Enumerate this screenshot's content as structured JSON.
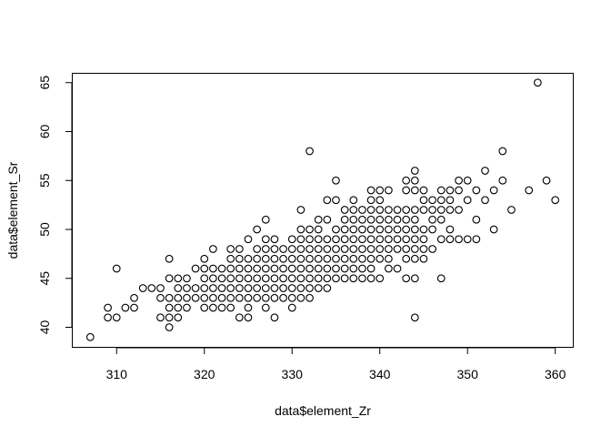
{
  "chart_data": {
    "type": "scatter",
    "xlabel": "data$element_Zr",
    "ylabel": "data$element_Sr",
    "xlim": [
      305,
      362
    ],
    "ylim": [
      38,
      66
    ],
    "xticks": [
      310,
      320,
      330,
      340,
      350,
      360
    ],
    "yticks": [
      40,
      45,
      50,
      55,
      60,
      65
    ],
    "grid": false,
    "marker": "open-circle",
    "marker_color": "#000000",
    "points": [
      [
        307,
        39
      ],
      [
        309,
        42
      ],
      [
        309,
        41
      ],
      [
        310,
        41
      ],
      [
        310,
        46
      ],
      [
        311,
        42
      ],
      [
        312,
        42
      ],
      [
        312,
        43
      ],
      [
        313,
        44
      ],
      [
        314,
        44
      ],
      [
        315,
        44
      ],
      [
        315,
        43
      ],
      [
        315,
        41
      ],
      [
        316,
        47
      ],
      [
        316,
        45
      ],
      [
        316,
        43
      ],
      [
        316,
        42
      ],
      [
        316,
        41
      ],
      [
        316,
        40
      ],
      [
        317,
        45
      ],
      [
        317,
        44
      ],
      [
        317,
        43
      ],
      [
        317,
        42
      ],
      [
        317,
        41
      ],
      [
        318,
        45
      ],
      [
        318,
        44
      ],
      [
        318,
        43
      ],
      [
        318,
        42
      ],
      [
        319,
        46
      ],
      [
        319,
        44
      ],
      [
        319,
        43
      ],
      [
        320,
        47
      ],
      [
        320,
        46
      ],
      [
        320,
        45
      ],
      [
        320,
        44
      ],
      [
        320,
        43
      ],
      [
        320,
        42
      ],
      [
        321,
        48
      ],
      [
        321,
        46
      ],
      [
        321,
        45
      ],
      [
        321,
        44
      ],
      [
        321,
        43
      ],
      [
        321,
        42
      ],
      [
        322,
        46
      ],
      [
        322,
        45
      ],
      [
        322,
        44
      ],
      [
        322,
        43
      ],
      [
        322,
        42
      ],
      [
        323,
        48
      ],
      [
        323,
        47
      ],
      [
        323,
        46
      ],
      [
        323,
        45
      ],
      [
        323,
        44
      ],
      [
        323,
        43
      ],
      [
        323,
        42
      ],
      [
        324,
        48
      ],
      [
        324,
        47
      ],
      [
        324,
        46
      ],
      [
        324,
        45
      ],
      [
        324,
        44
      ],
      [
        324,
        43
      ],
      [
        324,
        41
      ],
      [
        325,
        49
      ],
      [
        325,
        47
      ],
      [
        325,
        46
      ],
      [
        325,
        45
      ],
      [
        325,
        44
      ],
      [
        325,
        43
      ],
      [
        325,
        42
      ],
      [
        325,
        41
      ],
      [
        326,
        50
      ],
      [
        326,
        48
      ],
      [
        326,
        47
      ],
      [
        326,
        46
      ],
      [
        326,
        45
      ],
      [
        326,
        44
      ],
      [
        326,
        43
      ],
      [
        327,
        51
      ],
      [
        327,
        49
      ],
      [
        327,
        48
      ],
      [
        327,
        47
      ],
      [
        327,
        46
      ],
      [
        327,
        45
      ],
      [
        327,
        44
      ],
      [
        327,
        43
      ],
      [
        327,
        42
      ],
      [
        328,
        49
      ],
      [
        328,
        48
      ],
      [
        328,
        47
      ],
      [
        328,
        46
      ],
      [
        328,
        45
      ],
      [
        328,
        44
      ],
      [
        328,
        43
      ],
      [
        328,
        41
      ],
      [
        329,
        48
      ],
      [
        329,
        47
      ],
      [
        329,
        46
      ],
      [
        329,
        45
      ],
      [
        329,
        44
      ],
      [
        329,
        43
      ],
      [
        330,
        49
      ],
      [
        330,
        48
      ],
      [
        330,
        47
      ],
      [
        330,
        46
      ],
      [
        330,
        45
      ],
      [
        330,
        44
      ],
      [
        330,
        43
      ],
      [
        330,
        42
      ],
      [
        331,
        52
      ],
      [
        331,
        50
      ],
      [
        331,
        49
      ],
      [
        331,
        48
      ],
      [
        331,
        47
      ],
      [
        331,
        46
      ],
      [
        331,
        45
      ],
      [
        331,
        44
      ],
      [
        331,
        43
      ],
      [
        332,
        58
      ],
      [
        332,
        50
      ],
      [
        332,
        49
      ],
      [
        332,
        48
      ],
      [
        332,
        47
      ],
      [
        332,
        46
      ],
      [
        332,
        45
      ],
      [
        332,
        44
      ],
      [
        332,
        43
      ],
      [
        333,
        51
      ],
      [
        333,
        50
      ],
      [
        333,
        49
      ],
      [
        333,
        48
      ],
      [
        333,
        47
      ],
      [
        333,
        46
      ],
      [
        333,
        45
      ],
      [
        333,
        44
      ],
      [
        334,
        53
      ],
      [
        334,
        51
      ],
      [
        334,
        49
      ],
      [
        334,
        48
      ],
      [
        334,
        47
      ],
      [
        334,
        46
      ],
      [
        334,
        45
      ],
      [
        334,
        44
      ],
      [
        335,
        55
      ],
      [
        335,
        53
      ],
      [
        335,
        50
      ],
      [
        335,
        49
      ],
      [
        335,
        48
      ],
      [
        335,
        47
      ],
      [
        335,
        46
      ],
      [
        335,
        45
      ],
      [
        336,
        52
      ],
      [
        336,
        51
      ],
      [
        336,
        50
      ],
      [
        336,
        49
      ],
      [
        336,
        48
      ],
      [
        336,
        47
      ],
      [
        336,
        46
      ],
      [
        336,
        45
      ],
      [
        337,
        53
      ],
      [
        337,
        52
      ],
      [
        337,
        51
      ],
      [
        337,
        50
      ],
      [
        337,
        49
      ],
      [
        337,
        48
      ],
      [
        337,
        47
      ],
      [
        337,
        46
      ],
      [
        337,
        45
      ],
      [
        338,
        52
      ],
      [
        338,
        51
      ],
      [
        338,
        50
      ],
      [
        338,
        49
      ],
      [
        338,
        48
      ],
      [
        338,
        47
      ],
      [
        338,
        46
      ],
      [
        338,
        45
      ],
      [
        339,
        54
      ],
      [
        339,
        53
      ],
      [
        339,
        52
      ],
      [
        339,
        51
      ],
      [
        339,
        50
      ],
      [
        339,
        49
      ],
      [
        339,
        48
      ],
      [
        339,
        47
      ],
      [
        339,
        46
      ],
      [
        339,
        45
      ],
      [
        340,
        54
      ],
      [
        340,
        53
      ],
      [
        340,
        52
      ],
      [
        340,
        51
      ],
      [
        340,
        50
      ],
      [
        340,
        49
      ],
      [
        340,
        48
      ],
      [
        340,
        47
      ],
      [
        340,
        45
      ],
      [
        341,
        54
      ],
      [
        341,
        52
      ],
      [
        341,
        51
      ],
      [
        341,
        50
      ],
      [
        341,
        49
      ],
      [
        341,
        48
      ],
      [
        341,
        47
      ],
      [
        341,
        46
      ],
      [
        342,
        52
      ],
      [
        342,
        51
      ],
      [
        342,
        50
      ],
      [
        342,
        49
      ],
      [
        342,
        48
      ],
      [
        342,
        46
      ],
      [
        343,
        55
      ],
      [
        343,
        54
      ],
      [
        343,
        52
      ],
      [
        343,
        51
      ],
      [
        343,
        50
      ],
      [
        343,
        49
      ],
      [
        343,
        48
      ],
      [
        343,
        47
      ],
      [
        343,
        45
      ],
      [
        344,
        56
      ],
      [
        344,
        55
      ],
      [
        344,
        54
      ],
      [
        344,
        52
      ],
      [
        344,
        51
      ],
      [
        344,
        50
      ],
      [
        344,
        49
      ],
      [
        344,
        48
      ],
      [
        344,
        47
      ],
      [
        344,
        45
      ],
      [
        344,
        41
      ],
      [
        345,
        54
      ],
      [
        345,
        53
      ],
      [
        345,
        52
      ],
      [
        345,
        50
      ],
      [
        345,
        49
      ],
      [
        345,
        48
      ],
      [
        345,
        47
      ],
      [
        346,
        53
      ],
      [
        346,
        52
      ],
      [
        346,
        51
      ],
      [
        346,
        50
      ],
      [
        346,
        48
      ],
      [
        347,
        54
      ],
      [
        347,
        53
      ],
      [
        347,
        52
      ],
      [
        347,
        51
      ],
      [
        347,
        49
      ],
      [
        347,
        45
      ],
      [
        348,
        54
      ],
      [
        348,
        53
      ],
      [
        348,
        52
      ],
      [
        348,
        50
      ],
      [
        348,
        49
      ],
      [
        349,
        55
      ],
      [
        349,
        54
      ],
      [
        349,
        52
      ],
      [
        349,
        49
      ],
      [
        350,
        55
      ],
      [
        350,
        53
      ],
      [
        350,
        49
      ],
      [
        351,
        54
      ],
      [
        351,
        51
      ],
      [
        351,
        49
      ],
      [
        352,
        56
      ],
      [
        352,
        53
      ],
      [
        353,
        54
      ],
      [
        353,
        50
      ],
      [
        354,
        58
      ],
      [
        354,
        55
      ],
      [
        355,
        52
      ],
      [
        357,
        54
      ],
      [
        358,
        65
      ],
      [
        359,
        55
      ],
      [
        360,
        53
      ]
    ]
  }
}
